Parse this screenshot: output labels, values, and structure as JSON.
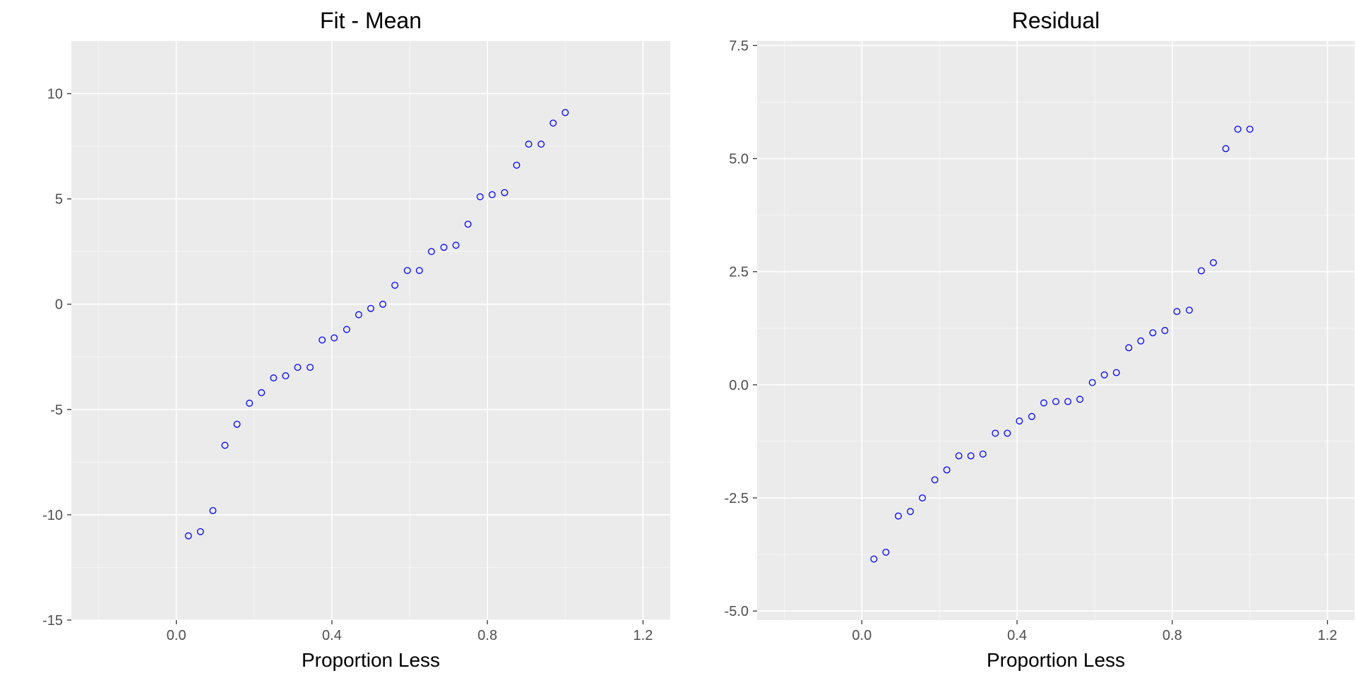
{
  "chart_data": [
    {
      "type": "scatter",
      "title": "Fit - Mean",
      "xlabel": "Proportion Less",
      "ylabel": "",
      "xlim": [
        -0.27,
        1.27
      ],
      "ylim": [
        -15,
        12.5
      ],
      "x_ticks": [
        0.0,
        0.4,
        0.8,
        1.2
      ],
      "x_tick_labels": [
        "0.0",
        "0.4",
        "0.8",
        "1.2"
      ],
      "y_ticks": [
        -15,
        -10,
        -5,
        0,
        5,
        10
      ],
      "y_tick_labels": [
        "-15",
        "-10",
        "-5",
        "0",
        "5",
        "10"
      ],
      "grid": true,
      "point_color": "#0000ff",
      "x": [
        0.031,
        0.062,
        0.094,
        0.125,
        0.156,
        0.188,
        0.219,
        0.25,
        0.281,
        0.312,
        0.344,
        0.375,
        0.406,
        0.438,
        0.469,
        0.5,
        0.531,
        0.562,
        0.594,
        0.625,
        0.656,
        0.688,
        0.719,
        0.75,
        0.781,
        0.812,
        0.844,
        0.875,
        0.906,
        0.938,
        0.969,
        1.0
      ],
      "y": [
        -11.0,
        -10.8,
        -9.8,
        -6.7,
        -5.7,
        -4.7,
        -4.2,
        -3.5,
        -3.4,
        -3.0,
        -3.0,
        -1.7,
        -1.6,
        -1.2,
        -0.5,
        -0.2,
        0.0,
        0.9,
        1.6,
        1.6,
        2.5,
        2.7,
        2.8,
        3.8,
        5.1,
        5.2,
        5.3,
        6.6,
        7.6,
        7.6,
        8.6,
        9.1
      ]
    },
    {
      "type": "scatter",
      "title": "Residual",
      "xlabel": "Proportion Less",
      "ylabel": "",
      "xlim": [
        -0.27,
        1.27
      ],
      "ylim": [
        -5.2,
        7.6
      ],
      "x_ticks": [
        0.0,
        0.4,
        0.8,
        1.2
      ],
      "x_tick_labels": [
        "0.0",
        "0.4",
        "0.8",
        "1.2"
      ],
      "y_ticks": [
        -5.0,
        -2.5,
        0.0,
        2.5,
        5.0,
        7.5
      ],
      "y_tick_labels": [
        "-5.0",
        "-2.5",
        "0.0",
        "2.5",
        "5.0",
        "7.5"
      ],
      "grid": true,
      "point_color": "#0000ff",
      "x": [
        0.031,
        0.062,
        0.094,
        0.125,
        0.156,
        0.188,
        0.219,
        0.25,
        0.281,
        0.312,
        0.344,
        0.375,
        0.406,
        0.438,
        0.469,
        0.5,
        0.531,
        0.562,
        0.594,
        0.625,
        0.656,
        0.688,
        0.719,
        0.75,
        0.781,
        0.812,
        0.844,
        0.875,
        0.906,
        0.938,
        0.969,
        1.0
      ],
      "y": [
        -3.85,
        -3.7,
        -2.9,
        -2.8,
        -2.5,
        -2.1,
        -1.88,
        -1.57,
        -1.57,
        -1.53,
        -1.07,
        -1.07,
        -0.8,
        -0.7,
        -0.4,
        -0.37,
        -0.37,
        -0.32,
        0.05,
        0.22,
        0.27,
        0.82,
        0.97,
        1.15,
        1.2,
        1.62,
        1.65,
        2.52,
        2.7,
        5.22,
        5.65,
        5.65
      ]
    }
  ]
}
